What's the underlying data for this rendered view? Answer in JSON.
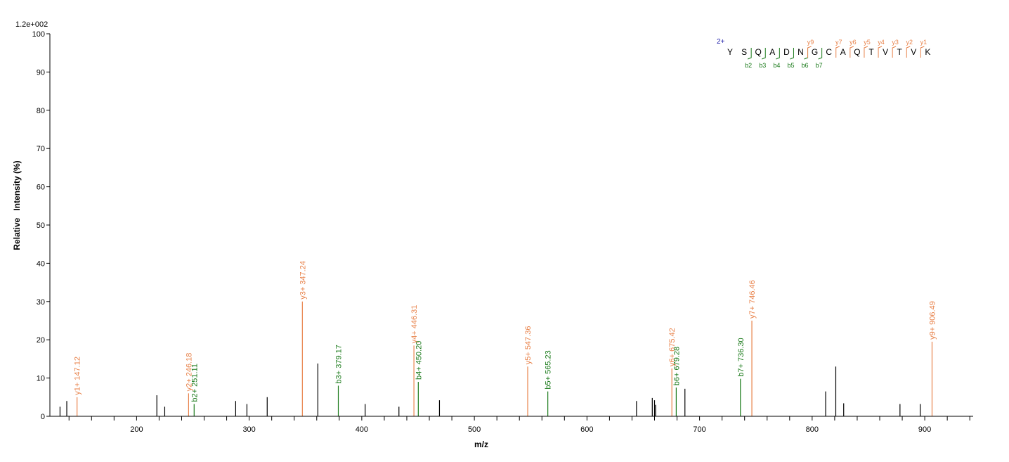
{
  "chart_data": {
    "type": "bar",
    "scale_label": "1.2e+002",
    "xlabel": "m/z",
    "ylabel": "Relative   Intensity (%)",
    "xlim": [
      123,
      943
    ],
    "ylim": [
      0,
      100
    ],
    "x_ticks": [
      200,
      300,
      400,
      500,
      600,
      700,
      800,
      900
    ],
    "y_ticks": [
      0,
      10,
      20,
      30,
      40,
      50,
      60,
      70,
      80,
      90,
      100
    ],
    "colors": {
      "y_ion": "#e8824a",
      "b_ion": "#1a7a1a",
      "unassigned": "#000000",
      "charge": "#1a1aa8",
      "axis": "#000000"
    },
    "peaks": [
      {
        "mz": 132,
        "intensity": 2.5,
        "ion": "none"
      },
      {
        "mz": 138,
        "intensity": 4,
        "ion": "none"
      },
      {
        "mz": 147.12,
        "intensity": 5,
        "ion": "y",
        "label": "y1+ 147.12"
      },
      {
        "mz": 218,
        "intensity": 5.5,
        "ion": "none"
      },
      {
        "mz": 225,
        "intensity": 2.5,
        "ion": "none"
      },
      {
        "mz": 246.18,
        "intensity": 6,
        "ion": "y",
        "label": "y2+ 246.18"
      },
      {
        "mz": 251.11,
        "intensity": 3.2,
        "ion": "b",
        "label": "b2+ 251.11"
      },
      {
        "mz": 288,
        "intensity": 4,
        "ion": "none"
      },
      {
        "mz": 298,
        "intensity": 3.2,
        "ion": "none"
      },
      {
        "mz": 316,
        "intensity": 5,
        "ion": "none"
      },
      {
        "mz": 347.24,
        "intensity": 30,
        "ion": "y",
        "label": "y3+ 347.24"
      },
      {
        "mz": 361,
        "intensity": 13.8,
        "ion": "none"
      },
      {
        "mz": 379.17,
        "intensity": 8,
        "ion": "b",
        "label": "b3+ 379.17"
      },
      {
        "mz": 403,
        "intensity": 3.2,
        "ion": "none"
      },
      {
        "mz": 433,
        "intensity": 2.5,
        "ion": "none"
      },
      {
        "mz": 446.31,
        "intensity": 18.5,
        "ion": "y",
        "label": "y4+ 446.31"
      },
      {
        "mz": 450.2,
        "intensity": 9,
        "ion": "b",
        "label": "b4+ 450.20"
      },
      {
        "mz": 469,
        "intensity": 4.2,
        "ion": "none"
      },
      {
        "mz": 547.36,
        "intensity": 13,
        "ion": "y",
        "label": "y5+ 547.36"
      },
      {
        "mz": 565.23,
        "intensity": 6.5,
        "ion": "b",
        "label": "b5+ 565.23"
      },
      {
        "mz": 644,
        "intensity": 4,
        "ion": "none"
      },
      {
        "mz": 658,
        "intensity": 4.8,
        "ion": "none"
      },
      {
        "mz": 660,
        "intensity": 4.2,
        "ion": "none"
      },
      {
        "mz": 661,
        "intensity": 3,
        "ion": "none"
      },
      {
        "mz": 675.42,
        "intensity": 12.5,
        "ion": "y",
        "label": "y6+ 675.42"
      },
      {
        "mz": 679.28,
        "intensity": 7.5,
        "ion": "b",
        "label": "b6+ 679.28"
      },
      {
        "mz": 687,
        "intensity": 7.2,
        "ion": "none"
      },
      {
        "mz": 736.3,
        "intensity": 9.8,
        "ion": "b",
        "label": "b7+ 736.30"
      },
      {
        "mz": 746.46,
        "intensity": 25,
        "ion": "y",
        "label": "y7+ 746.46"
      },
      {
        "mz": 812,
        "intensity": 6.5,
        "ion": "none"
      },
      {
        "mz": 821,
        "intensity": 13,
        "ion": "none"
      },
      {
        "mz": 828,
        "intensity": 3.4,
        "ion": "none"
      },
      {
        "mz": 878,
        "intensity": 3.2,
        "ion": "none"
      },
      {
        "mz": 896,
        "intensity": 3.2,
        "ion": "none"
      },
      {
        "mz": 906.49,
        "intensity": 19.5,
        "ion": "y",
        "label": "y9+ 906.49"
      }
    ],
    "sequence": {
      "charge": "2+",
      "residues": [
        "Y",
        "S",
        "Q",
        "A",
        "D",
        "N",
        "G",
        "C",
        "A",
        "Q",
        "T",
        "V",
        "T",
        "V",
        "K"
      ],
      "b_ions": [
        "b2",
        "b3",
        "b4",
        "b5",
        "b6",
        "b7"
      ],
      "y_ions": [
        "y9",
        "y7",
        "y6",
        "y5",
        "y4",
        "y3",
        "y2",
        "y1"
      ]
    }
  }
}
